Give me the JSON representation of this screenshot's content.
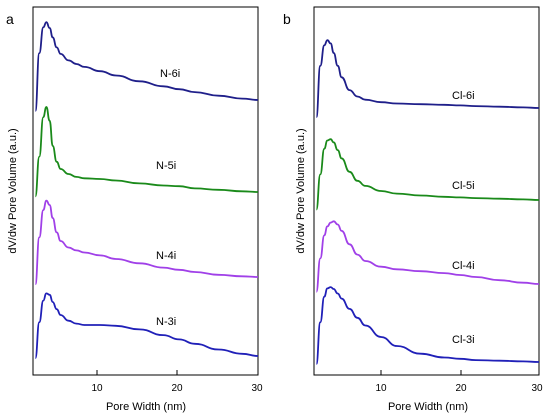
{
  "chart_data": [
    {
      "panel": "a",
      "type": "line",
      "xlabel": "Pore Width (nm)",
      "ylabel": "dV/dw Pore Volume (a.u.)",
      "xlim": [
        1.5,
        30
      ],
      "xticks": [
        10,
        20,
        30
      ],
      "grid": false,
      "series": [
        {
          "name": "N-6i",
          "color": "#1f1f8a",
          "x": [
            1.8,
            2.3,
            2.8,
            3.2,
            3.6,
            4.0,
            4.5,
            5.0,
            6.0,
            7.0,
            8.0,
            10,
            12,
            15,
            18,
            20,
            22,
            25,
            28,
            30
          ],
          "y": [
            1.0,
            9.0,
            12.6,
            13.3,
            12.5,
            11.2,
            9.8,
            8.9,
            8.0,
            7.5,
            7.1,
            6.5,
            5.9,
            5.1,
            4.4,
            4.0,
            3.6,
            3.1,
            2.7,
            2.5
          ]
        },
        {
          "name": "N-5i",
          "color": "#1a8a1a",
          "x": [
            1.8,
            2.3,
            2.8,
            3.2,
            3.6,
            4.0,
            4.5,
            5.0,
            6.0,
            7.0,
            8.0,
            10,
            12,
            15,
            18,
            20,
            22,
            25,
            28,
            30
          ],
          "y": [
            1.0,
            6.5,
            12.0,
            13.4,
            11.5,
            8.0,
            5.8,
            4.8,
            4.1,
            3.7,
            3.5,
            3.4,
            3.2,
            2.8,
            2.5,
            2.4,
            2.1,
            1.9,
            1.7,
            1.6
          ]
        },
        {
          "name": "N-4i",
          "color": "#a040e8",
          "x": [
            1.8,
            2.3,
            2.8,
            3.2,
            3.6,
            4.0,
            4.5,
            5.0,
            6.0,
            7.0,
            8.0,
            10,
            12,
            15,
            18,
            20,
            22,
            25,
            28,
            30
          ],
          "y": [
            1.0,
            7.5,
            11.3,
            12.6,
            12.0,
            10.2,
            8.2,
            7.0,
            6.1,
            5.7,
            5.4,
            5.0,
            4.5,
            3.9,
            3.3,
            3.0,
            2.7,
            2.3,
            2.1,
            2.0
          ]
        },
        {
          "name": "N-3i",
          "color": "#2020b8",
          "x": [
            1.8,
            2.3,
            2.8,
            3.2,
            3.6,
            4.0,
            4.5,
            5.0,
            6.0,
            7.0,
            8.0,
            10,
            12,
            15,
            18,
            20,
            22,
            25,
            28,
            30
          ],
          "y": [
            1.0,
            6.0,
            9.0,
            10.0,
            9.8,
            8.8,
            7.8,
            7.0,
            6.2,
            5.8,
            5.6,
            5.6,
            5.5,
            5.0,
            4.2,
            3.6,
            3.0,
            2.2,
            1.6,
            1.3
          ]
        }
      ],
      "labels": [
        "N-6i",
        "N-5i",
        "N-4i",
        "N-3i"
      ]
    },
    {
      "panel": "b",
      "type": "line",
      "xlabel": "Pore Width (nm)",
      "ylabel": "dV/dw Pore Volume (a.u.)",
      "xlim": [
        1.5,
        30
      ],
      "xticks": [
        10,
        20,
        30
      ],
      "grid": false,
      "series": [
        {
          "name": "Cl-6i",
          "color": "#1f1f8a",
          "x": [
            1.8,
            2.3,
            2.8,
            3.2,
            3.6,
            4.0,
            4.5,
            5.0,
            6.0,
            7.0,
            8.0,
            10,
            12,
            15,
            18,
            20,
            22,
            25,
            28,
            30
          ],
          "y": [
            1.0,
            9.0,
            12.2,
            13.0,
            12.5,
            11.0,
            9.0,
            7.2,
            5.2,
            4.2,
            3.7,
            3.3,
            3.1,
            3.0,
            2.9,
            2.8,
            2.7,
            2.6,
            2.5,
            2.4
          ]
        },
        {
          "name": "Cl-5i",
          "color": "#1a8a1a",
          "x": [
            1.8,
            2.3,
            2.8,
            3.2,
            3.6,
            4.0,
            4.5,
            5.0,
            6.0,
            7.0,
            8.0,
            10,
            12,
            15,
            18,
            20,
            22,
            25,
            28,
            30
          ],
          "y": [
            1.0,
            6.5,
            10.5,
            11.8,
            12.0,
            11.5,
            10.3,
            9.0,
            6.9,
            5.5,
            4.7,
            3.9,
            3.5,
            3.2,
            3.0,
            2.9,
            2.8,
            2.7,
            2.6,
            2.5
          ]
        },
        {
          "name": "Cl-4i",
          "color": "#a040e8",
          "x": [
            1.8,
            2.3,
            2.8,
            3.2,
            3.6,
            4.0,
            4.5,
            5.0,
            6.0,
            7.0,
            8.0,
            10,
            12,
            15,
            18,
            20,
            22,
            25,
            28,
            30
          ],
          "y": [
            1.0,
            6.2,
            9.8,
            11.2,
            11.8,
            12.0,
            11.5,
            10.5,
            8.4,
            6.8,
            5.8,
            4.9,
            4.5,
            4.2,
            3.9,
            3.6,
            3.3,
            2.8,
            2.4,
            2.2
          ]
        },
        {
          "name": "Cl-3i",
          "color": "#2020b8",
          "x": [
            1.8,
            2.3,
            2.8,
            3.2,
            3.6,
            4.0,
            4.5,
            5.0,
            6.0,
            7.0,
            8.0,
            10,
            12,
            15,
            18,
            20,
            22,
            25,
            28,
            30
          ],
          "y": [
            1.0,
            7.5,
            11.5,
            12.8,
            13.0,
            12.7,
            12.0,
            11.2,
            9.6,
            8.2,
            7.0,
            5.2,
            3.8,
            2.6,
            2.0,
            1.8,
            1.6,
            1.5,
            1.4,
            1.3
          ]
        }
      ],
      "labels": [
        "Cl-6i",
        "Cl-5i",
        "Cl-4i",
        "Cl-3i"
      ]
    }
  ]
}
